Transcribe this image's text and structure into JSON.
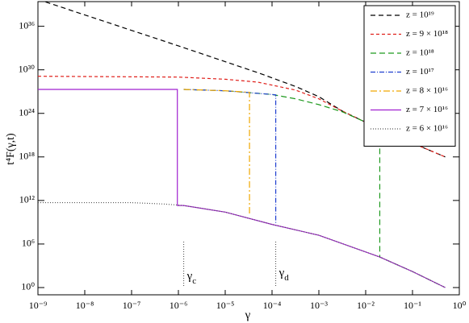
{
  "chart_data": {
    "type": "line",
    "x_label": "γ",
    "y_label": "t⁴F(γ,t)",
    "xscale": "log",
    "yscale": "log",
    "xlim": [
      1e-09,
      1
    ],
    "ylim": [
      0.1,
      2.5e+39
    ],
    "xticks": [
      {
        "value": 1e-09,
        "label": "10⁻⁹"
      },
      {
        "value": 1e-08,
        "label": "10⁻⁸"
      },
      {
        "value": 1e-07,
        "label": "10⁻⁷"
      },
      {
        "value": 1e-06,
        "label": "10⁻⁶"
      },
      {
        "value": 1e-05,
        "label": "10⁻⁵"
      },
      {
        "value": 0.0001,
        "label": "10⁻⁴"
      },
      {
        "value": 0.001,
        "label": "10⁻³"
      },
      {
        "value": 0.01,
        "label": "10⁻²"
      },
      {
        "value": 0.1,
        "label": "10⁻¹"
      },
      {
        "value": 1,
        "label": "10⁰"
      }
    ],
    "yticks": [
      {
        "value": 1,
        "label": "10⁰"
      },
      {
        "value": 1000000.0,
        "label": "10⁶"
      },
      {
        "value": 1000000000000.0,
        "label": "10¹²"
      },
      {
        "value": 1e+18,
        "label": "10¹⁸"
      },
      {
        "value": 1e+24,
        "label": "10²⁴"
      },
      {
        "value": 1e+30,
        "label": "10³⁰"
      },
      {
        "value": 1e+36,
        "label": "10³⁶"
      }
    ],
    "legend_position": "upper right",
    "annotations": [
      {
        "text": "γ",
        "sub": "c",
        "x": 1.3e-06
      },
      {
        "text": "γ",
        "sub": "d",
        "x": 0.00012
      }
    ],
    "series": [
      {
        "name": "z = 10¹⁹",
        "color": "#000000",
        "dash": "6,4",
        "x": [
          1e-09,
          1e-06,
          5e-05,
          0.00032,
          0.001,
          0.0032,
          0.01,
          0.02,
          0.1,
          0.5
        ],
        "values": [
          5e+39,
          2e+33,
          4e+29,
          5e+27,
          2e+26,
          2e+24,
          6e+22,
          8e+21,
          8e+19,
          1e+18
        ]
      },
      {
        "name": "z = 9 × 10¹⁸",
        "color": "#e0201b",
        "dash": "4,3",
        "x": [
          1e-09,
          1e-06,
          1e-05,
          5e-05,
          0.00032,
          0.001,
          0.0032,
          0.01,
          0.02,
          0.1,
          0.5
        ],
        "values": [
          1.3e+29,
          1e+29,
          5e+28,
          2e+28,
          1.6e+27,
          1e+26,
          2e+24,
          6e+22,
          8e+21,
          8e+19,
          1e+18
        ]
      },
      {
        "name": "z = 10¹⁸",
        "color": "#1f9a1f",
        "dash": "7,4",
        "x": [
          1.3e-06,
          1e-05,
          0.0001,
          0.00032,
          0.001,
          0.0032,
          0.01,
          0.02,
          0.02,
          0.1,
          0.5
        ],
        "values": [
          2e+27,
          1.3e+27,
          4e+26,
          1e+26,
          1.6e+25,
          1.6e+24,
          6e+22,
          8e+21,
          16000.0,
          160,
          1
        ]
      },
      {
        "name": "z = 10¹⁷",
        "color": "#1f3fd0",
        "dash": "6,2,1,2",
        "x": [
          1.3e-06,
          1e-05,
          0.0001,
          0.00012,
          0.00012
        ],
        "values": [
          2e+27,
          1.3e+27,
          4e+26,
          3.5e+26,
          600000000.0
        ]
      },
      {
        "name": "z = 8 × 10¹⁶",
        "color": "#f0a800",
        "dash": "8,3,2,3",
        "x": [
          1.3e-06,
          1e-05,
          3.3e-05,
          3.3e-05
        ],
        "values": [
          2e+27,
          1.3e+27,
          8e+26,
          8000000000.0
        ]
      },
      {
        "name": "z = 7 × 10¹⁶",
        "color": "#a020d0",
        "dash": "",
        "x": [
          1e-09,
          9.5e-07,
          9.5e-07,
          1.3e-06,
          1e-05,
          0.0001,
          0.001,
          0.01,
          0.02,
          0.1,
          0.5
        ],
        "values": [
          2e+27,
          2e+27,
          200000000000.0,
          200000000000.0,
          25000000000.0,
          500000000.0,
          16000000.0,
          80000.0,
          16000.0,
          160,
          1
        ]
      },
      {
        "name": "z = 6 × 10¹⁶",
        "color": "#555555",
        "dash": "1,2",
        "x": [
          1e-09,
          1e-07,
          5e-07,
          1.3e-06,
          1e-05,
          0.0001,
          0.001,
          0.01,
          0.02,
          0.1,
          0.5
        ],
        "values": [
          500000000000.0,
          500000000000.0,
          320000000000.0,
          200000000000.0,
          25000000000.0,
          500000000.0,
          16000000.0,
          80000.0,
          16000.0,
          160,
          1
        ]
      }
    ]
  }
}
